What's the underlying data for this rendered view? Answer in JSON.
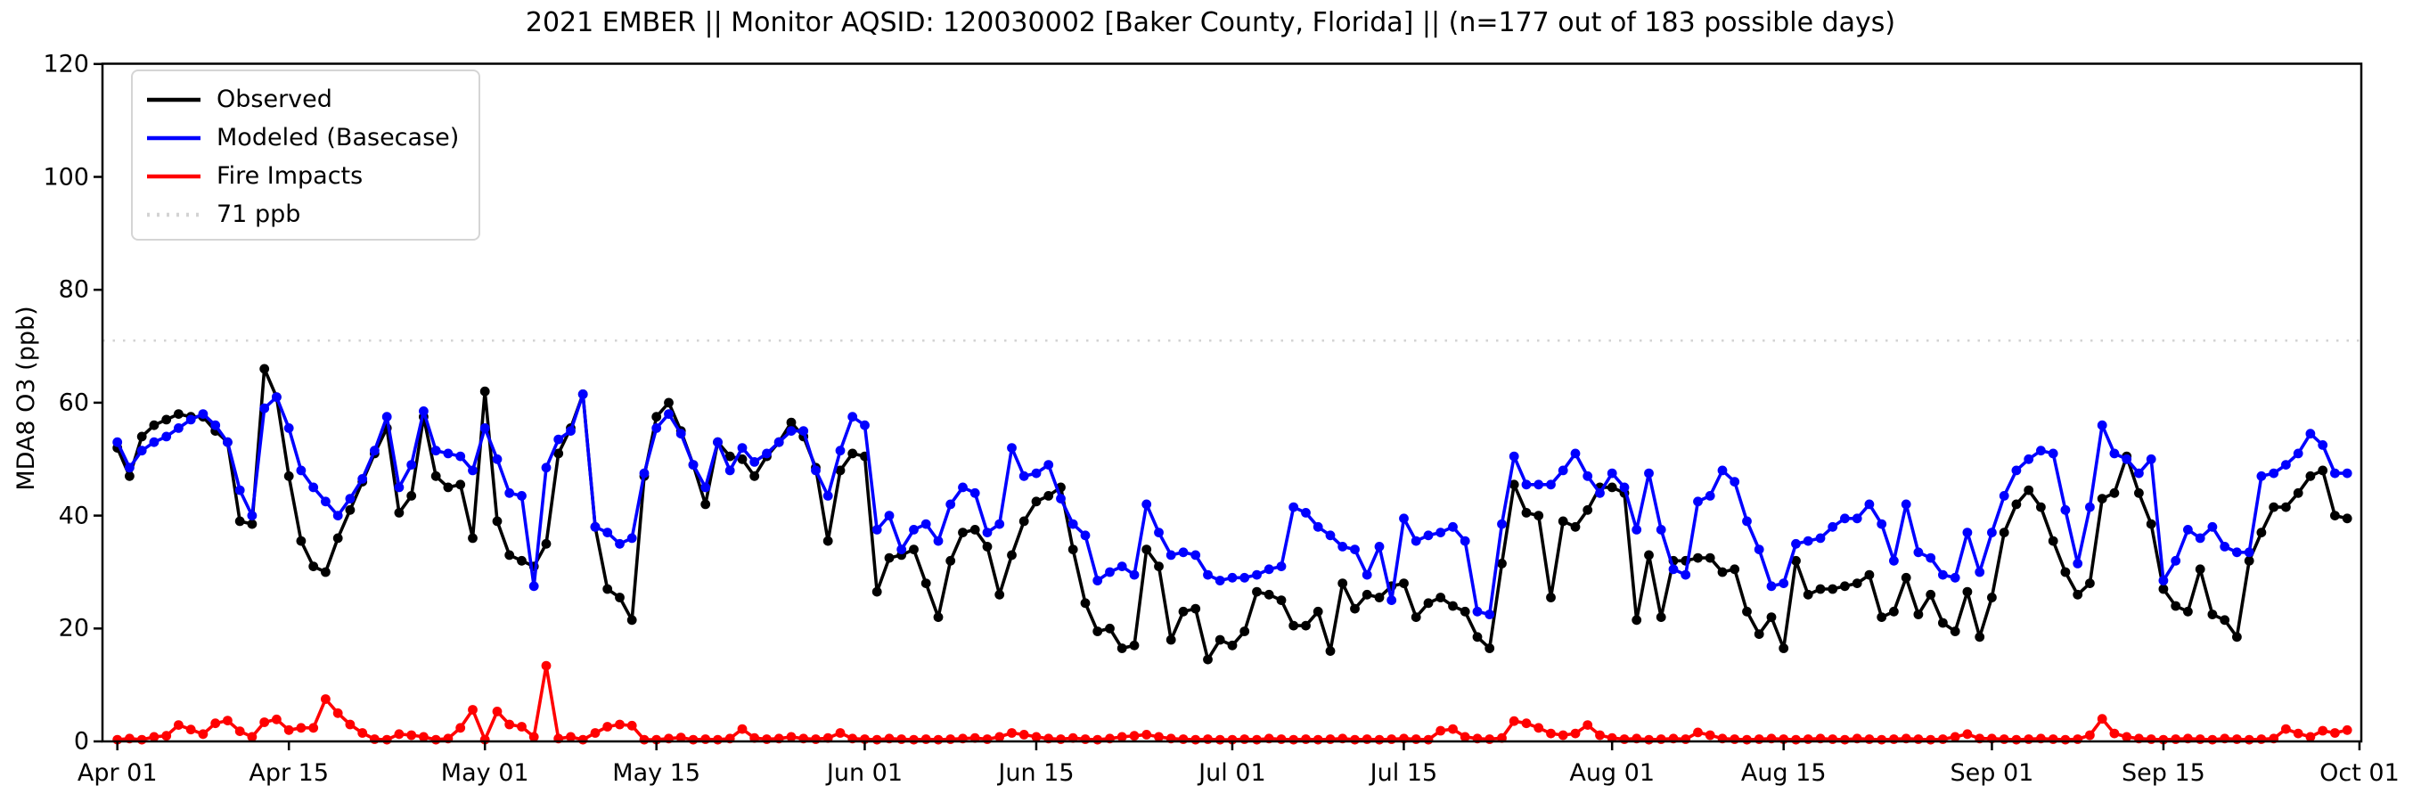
{
  "title": "2021 EMBER || Monitor AQSID: 120030002 [Baker County, Florida] || (n=177 out of 183 possible days)",
  "y_axis": {
    "label": "MDA8 O3 (ppb)",
    "ticks": [
      0,
      20,
      40,
      60,
      80,
      100,
      120
    ]
  },
  "x_axis": {
    "ticks": [
      {
        "label": "Apr 01",
        "day": 0
      },
      {
        "label": "Apr 15",
        "day": 14
      },
      {
        "label": "May 01",
        "day": 30
      },
      {
        "label": "May 15",
        "day": 44
      },
      {
        "label": "Jun 01",
        "day": 61
      },
      {
        "label": "Jun 15",
        "day": 75
      },
      {
        "label": "Jul 01",
        "day": 91
      },
      {
        "label": "Jul 15",
        "day": 105
      },
      {
        "label": "Aug 01",
        "day": 122
      },
      {
        "label": "Aug 15",
        "day": 136
      },
      {
        "label": "Sep 01",
        "day": 153
      },
      {
        "label": "Sep 15",
        "day": 167
      },
      {
        "label": "Oct 01",
        "day": 183
      }
    ]
  },
  "legend": [
    {
      "label": "Observed",
      "color": "#000000",
      "style": "solid"
    },
    {
      "label": "Modeled (Basecase)",
      "color": "#0000ff",
      "style": "solid"
    },
    {
      "label": "Fire Impacts",
      "color": "#ff0000",
      "style": "solid"
    },
    {
      "label": "71 ppb",
      "color": "#d3d3d3",
      "style": "dotted"
    }
  ],
  "colors": {
    "observed": "#000000",
    "modeled": "#0000ff",
    "fire": "#ff0000",
    "reference": "#d3d3d3",
    "axis": "#000000"
  },
  "chart_data": {
    "type": "line",
    "title": "2021 EMBER || Monitor AQSID: 120030002 [Baker County, Florida] || (n=177 out of 183 possible days)",
    "ylabel": "MDA8 O3 (ppb)",
    "ylim": [
      0,
      120
    ],
    "x_start_date": "2021-04-01",
    "n_days": 183,
    "legend_position": "upper left",
    "grid": false,
    "reference_line": {
      "label": "71 ppb",
      "value": 71
    },
    "series": [
      {
        "name": "Observed",
        "color": "#000000",
        "values": [
          52,
          47,
          54,
          56,
          57,
          58,
          57.5,
          57.5,
          55,
          53,
          39,
          38.5,
          66,
          61,
          47,
          35.5,
          31,
          30,
          36,
          41,
          46,
          51,
          55.5,
          40.5,
          43.5,
          57.5,
          47,
          45,
          45.5,
          36,
          62,
          39,
          33,
          32,
          31,
          35,
          51,
          55.5,
          61.5,
          38,
          27,
          25.5,
          21.5,
          47,
          57.5,
          60,
          55,
          49,
          42,
          53,
          50.5,
          50,
          47,
          50.5,
          53,
          56.5,
          54,
          48.5,
          35.5,
          48,
          51,
          50.5,
          26.5,
          32.5,
          33,
          34,
          28,
          22,
          32,
          37,
          37.5,
          34.5,
          26,
          33,
          39,
          42.5,
          43.5,
          45,
          34,
          24.5,
          19.5,
          20,
          16.5,
          17,
          34,
          31,
          18,
          23,
          23.5,
          14.5,
          18,
          17,
          19.5,
          26.5,
          26,
          25,
          20.5,
          20.5,
          23,
          16,
          28,
          23.5,
          26,
          25.5,
          27.5,
          28,
          22,
          24.5,
          25.5,
          24,
          23,
          18.5,
          16.5,
          31.5,
          45.5,
          40.5,
          40,
          25.5,
          39,
          38,
          41,
          45,
          45,
          44,
          21.5,
          33,
          22,
          32,
          32,
          32.5,
          32.5,
          30,
          30.5,
          23,
          19,
          22,
          16.5,
          32,
          26,
          27,
          27,
          27.5,
          28,
          29.5,
          22,
          23,
          29,
          22.5,
          26,
          21,
          19.5,
          26.5,
          18.5,
          25.5,
          37,
          42,
          44.5,
          41.5,
          35.5,
          30,
          26,
          28,
          43,
          44,
          50.5,
          44,
          38.5,
          27,
          24,
          23,
          30.5,
          22.5,
          21.5,
          18.5,
          32,
          37,
          41.5,
          41.5,
          44,
          47,
          48,
          40,
          39.5
        ]
      },
      {
        "name": "Modeled (Basecase)",
        "color": "#0000ff",
        "values": [
          53,
          48.5,
          51.5,
          53,
          54,
          55.5,
          57,
          58,
          56,
          53,
          44.5,
          40,
          59,
          61,
          55.5,
          48,
          45,
          42.5,
          40,
          43,
          46.5,
          51.5,
          57.5,
          45,
          49,
          58.5,
          51.5,
          51,
          50.5,
          48,
          55.5,
          50,
          44,
          43.5,
          27.5,
          48.5,
          53.5,
          55,
          61.5,
          38,
          37,
          35,
          36,
          47.5,
          55.5,
          58,
          54.5,
          49,
          45,
          53,
          48,
          52,
          49.5,
          51,
          53,
          55,
          55,
          48,
          43.5,
          51.5,
          57.5,
          56,
          37.5,
          40,
          34,
          37.5,
          38.5,
          35.5,
          42,
          45,
          44,
          37,
          38.5,
          52,
          47,
          47.5,
          49,
          43,
          38.5,
          36.5,
          28.5,
          30,
          31,
          29.5,
          42,
          37,
          33,
          33.5,
          33,
          29.5,
          28.5,
          29,
          29,
          29.5,
          30.5,
          31,
          41.5,
          40.5,
          38,
          36.5,
          34.5,
          34,
          29.5,
          34.5,
          25,
          39.5,
          35.5,
          36.5,
          37,
          38,
          35.5,
          23,
          22.5,
          38.5,
          50.5,
          45.5,
          45.5,
          45.5,
          48,
          51,
          47,
          44,
          47.5,
          45,
          37.5,
          47.5,
          37.5,
          30.5,
          29.5,
          42.5,
          43.5,
          48,
          46,
          39,
          34,
          27.5,
          28,
          35,
          35.5,
          36,
          38,
          39.5,
          39.5,
          42,
          38.5,
          32,
          42,
          33.5,
          32.5,
          29.5,
          29,
          37,
          30,
          37,
          43.5,
          48,
          50,
          51.5,
          51,
          41,
          31.5,
          41.5,
          56,
          51,
          50,
          47.5,
          50,
          28.5,
          32,
          37.5,
          36,
          38,
          34.5,
          33.5,
          33.5,
          47,
          47.5,
          49,
          51,
          54.5,
          52.5,
          47.5,
          47.5
        ]
      },
      {
        "name": "Fire Impacts",
        "color": "#ff0000",
        "values": [
          0.3,
          0.5,
          0.3,
          0.8,
          1,
          2.9,
          2.1,
          1.3,
          3.2,
          3.7,
          1.8,
          0.8,
          3.4,
          3.9,
          2,
          2.4,
          2.4,
          7.5,
          5,
          3,
          1.5,
          0.4,
          0.3,
          1.3,
          1.1,
          0.8,
          0.3,
          0.5,
          2.4,
          5.6,
          0.3,
          5.3,
          3,
          2.6,
          0.8,
          13.4,
          0.5,
          0.8,
          0.3,
          1.5,
          2.6,
          3,
          2.8,
          0.3,
          0.3,
          0.5,
          0.7,
          0.3,
          0.4,
          0.3,
          0.5,
          2.2,
          0.6,
          0.4,
          0.5,
          0.8,
          0.5,
          0.4,
          0.6,
          1.5,
          0.5,
          0.4,
          0.3,
          0.5,
          0.4,
          0.3,
          0.4,
          0.3,
          0.4,
          0.5,
          0.6,
          0.4,
          0.8,
          1.5,
          1.2,
          0.8,
          0.5,
          0.4,
          0.6,
          0.4,
          0.3,
          0.5,
          0.8,
          1,
          1.2,
          0.8,
          0.5,
          0.4,
          0.3,
          0.4,
          0.3,
          0.3,
          0.4,
          0.3,
          0.5,
          0.4,
          0.3,
          0.4,
          0.3,
          0.4,
          0.5,
          0.3,
          0.4,
          0.3,
          0.4,
          0.5,
          0.4,
          0.3,
          1.9,
          2.2,
          0.8,
          0.5,
          0.4,
          0.6,
          3.6,
          3.2,
          2.4,
          1.4,
          1.1,
          1.4,
          2.9,
          1.1,
          0.6,
          0.4,
          0.5,
          0.3,
          0.4,
          0.5,
          0.4,
          1.6,
          1.1,
          0.5,
          0.4,
          0.3,
          0.4,
          0.5,
          0.4,
          0.3,
          0.4,
          0.5,
          0.4,
          0.3,
          0.5,
          0.4,
          0.3,
          0.4,
          0.5,
          0.4,
          0.3,
          0.4,
          0.8,
          1.3,
          0.5,
          0.5,
          0.4,
          0.3,
          0.4,
          0.5,
          0.4,
          0.3,
          0.4,
          1.1,
          4,
          1.4,
          0.8,
          0.5,
          0.4,
          0.3,
          0.4,
          0.5,
          0.4,
          0.3,
          0.5,
          0.4,
          0.3,
          0.4,
          0.5,
          2.2,
          1.4,
          0.8,
          1.9,
          1.5,
          2
        ]
      }
    ]
  }
}
